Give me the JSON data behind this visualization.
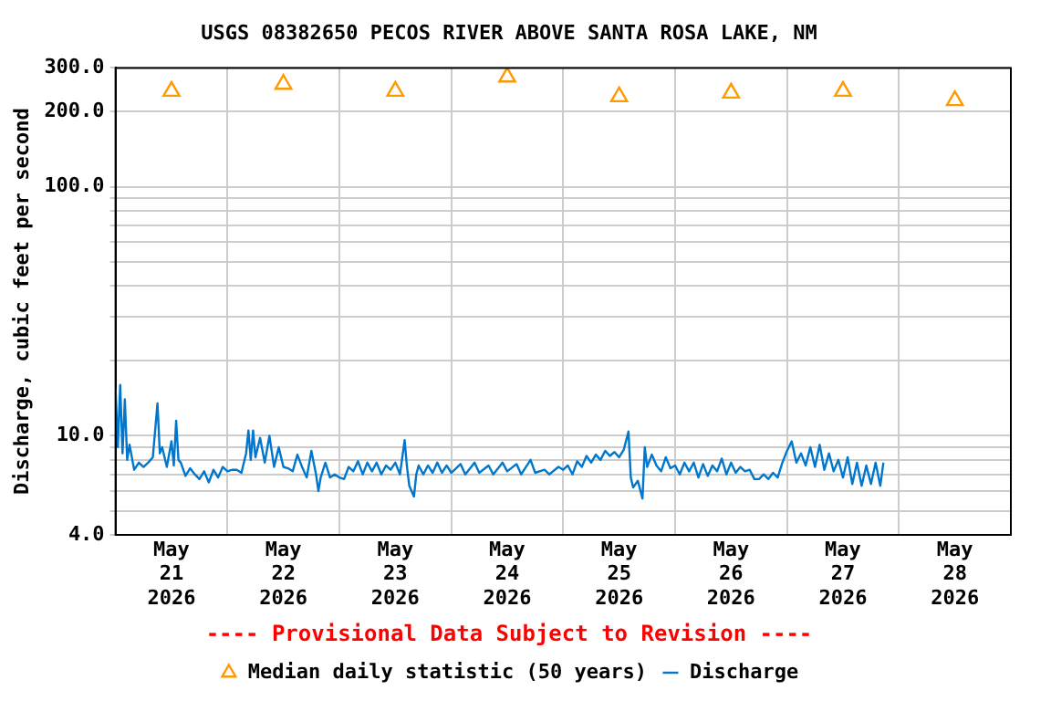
{
  "chart_data": {
    "type": "line",
    "title": "USGS 08382650 PECOS RIVER ABOVE SANTA ROSA LAKE, NM",
    "ylabel": "Discharge, cubic feet per second",
    "annotations": [
      "---- Provisional Data Subject to Revision ----"
    ],
    "log": "y",
    "grid": true,
    "legend": "bottom",
    "xlim": [
      "2026-05-21",
      "2026-05-29"
    ],
    "xticks": [
      {
        "value": "2026-05-21T12:00",
        "label": "May 21 2026"
      },
      {
        "value": "2026-05-22",
        "label": null
      },
      {
        "value": "2026-05-22T12:00",
        "label": "May 22 2026"
      },
      {
        "value": "2026-05-23",
        "label": null
      },
      {
        "value": "2026-05-23T12:00",
        "label": "May 23 2026"
      },
      {
        "value": "2026-05-24",
        "label": null
      },
      {
        "value": "2026-05-24T12:00",
        "label": "May 24 2026"
      },
      {
        "value": "2026-05-25",
        "label": null
      },
      {
        "value": "2026-05-25T12:00",
        "label": "May 25 2026"
      },
      {
        "value": "2026-05-26",
        "label": null
      },
      {
        "value": "2026-05-26T12:00",
        "label": "May 26 2026"
      },
      {
        "value": "2026-05-27",
        "label": null
      },
      {
        "value": "2026-05-27T12:00",
        "label": "May 27 2026"
      },
      {
        "value": "2026-05-28",
        "label": null
      },
      {
        "value": "2026-05-28T12:00",
        "label": "May 28 2026"
      }
    ],
    "ylim": [
      4,
      300
    ],
    "yticks": [
      {
        "value": 4,
        "label": "4.0"
      },
      {
        "value": 5,
        "label": null
      },
      {
        "value": 6,
        "label": null
      },
      {
        "value": 7,
        "label": null
      },
      {
        "value": 8,
        "label": null
      },
      {
        "value": 9,
        "label": null
      },
      {
        "value": 10,
        "label": "10.0"
      },
      {
        "value": 20,
        "label": null
      },
      {
        "value": 30,
        "label": null
      },
      {
        "value": 40,
        "label": null
      },
      {
        "value": 50,
        "label": null
      },
      {
        "value": 60,
        "label": null
      },
      {
        "value": 70,
        "label": null
      },
      {
        "value": 80,
        "label": null
      },
      {
        "value": 90,
        "label": null
      },
      {
        "value": 100,
        "label": "100.0"
      },
      {
        "value": 200,
        "label": "200.0"
      },
      {
        "value": 300,
        "label": "300.0"
      }
    ],
    "series": [
      {
        "name": "Median daily statistic (50 years)",
        "type": "scatter",
        "marker": "triangle",
        "color": "#ff9900",
        "x": [
          "2026-05-21T12:00",
          "2026-05-22T12:00",
          "2026-05-23T12:00",
          "2026-05-24T12:00",
          "2026-05-25T12:00",
          "2026-05-26T12:00",
          "2026-05-27T12:00",
          "2026-05-28T12:00"
        ],
        "values": [
          242,
          258,
          242,
          276,
          230,
          238,
          242,
          222
        ]
      },
      {
        "name": "Discharge",
        "type": "line",
        "marker": "none",
        "color": "#0077cc",
        "x": [
          "2026-05-21T00:00",
          "2026-05-21T00:30",
          "2026-05-21T01:00",
          "2026-05-21T01:30",
          "2026-05-21T02:00",
          "2026-05-21T02:30",
          "2026-05-21T03:00",
          "2026-05-21T04:00",
          "2026-05-21T05:00",
          "2026-05-21T06:00",
          "2026-05-21T07:00",
          "2026-05-21T08:00",
          "2026-05-21T09:00",
          "2026-05-21T09:30",
          "2026-05-21T10:00",
          "2026-05-21T11:00",
          "2026-05-21T12:00",
          "2026-05-21T12:30",
          "2026-05-21T13:00",
          "2026-05-21T13:30",
          "2026-05-21T14:00",
          "2026-05-21T15:00",
          "2026-05-21T16:00",
          "2026-05-21T17:00",
          "2026-05-21T18:00",
          "2026-05-21T19:00",
          "2026-05-21T20:00",
          "2026-05-21T21:00",
          "2026-05-21T22:00",
          "2026-05-21T23:00",
          "2026-05-22T00:00",
          "2026-05-22T01:00",
          "2026-05-22T02:00",
          "2026-05-22T03:00",
          "2026-05-22T04:00",
          "2026-05-22T04:30",
          "2026-05-22T05:00",
          "2026-05-22T05:30",
          "2026-05-22T06:00",
          "2026-05-22T07:00",
          "2026-05-22T08:00",
          "2026-05-22T09:00",
          "2026-05-22T10:00",
          "2026-05-22T11:00",
          "2026-05-22T12:00",
          "2026-05-22T13:00",
          "2026-05-22T14:00",
          "2026-05-22T15:00",
          "2026-05-22T16:00",
          "2026-05-22T17:00",
          "2026-05-22T18:00",
          "2026-05-22T19:00",
          "2026-05-22T19:30",
          "2026-05-22T20:00",
          "2026-05-22T21:00",
          "2026-05-22T22:00",
          "2026-05-22T23:00",
          "2026-05-23T00:00",
          "2026-05-23T01:00",
          "2026-05-23T02:00",
          "2026-05-23T03:00",
          "2026-05-23T04:00",
          "2026-05-23T05:00",
          "2026-05-23T06:00",
          "2026-05-23T07:00",
          "2026-05-23T08:00",
          "2026-05-23T09:00",
          "2026-05-23T10:00",
          "2026-05-23T11:00",
          "2026-05-23T12:00",
          "2026-05-23T13:00",
          "2026-05-23T14:00",
          "2026-05-23T14:30",
          "2026-05-23T15:00",
          "2026-05-23T16:00",
          "2026-05-23T16:30",
          "2026-05-23T17:00",
          "2026-05-23T18:00",
          "2026-05-23T19:00",
          "2026-05-23T20:00",
          "2026-05-23T21:00",
          "2026-05-23T22:00",
          "2026-05-23T23:00",
          "2026-05-24T00:00",
          "2026-05-24T02:00",
          "2026-05-24T03:00",
          "2026-05-24T05:00",
          "2026-05-24T06:00",
          "2026-05-24T08:00",
          "2026-05-24T09:00",
          "2026-05-24T11:00",
          "2026-05-24T12:00",
          "2026-05-24T14:00",
          "2026-05-24T15:00",
          "2026-05-24T17:00",
          "2026-05-24T18:00",
          "2026-05-24T20:00",
          "2026-05-24T21:00",
          "2026-05-24T23:00",
          "2026-05-25T00:00",
          "2026-05-25T01:00",
          "2026-05-25T02:00",
          "2026-05-25T03:00",
          "2026-05-25T04:00",
          "2026-05-25T05:00",
          "2026-05-25T06:00",
          "2026-05-25T07:00",
          "2026-05-25T08:00",
          "2026-05-25T09:00",
          "2026-05-25T10:00",
          "2026-05-25T11:00",
          "2026-05-25T12:00",
          "2026-05-25T13:00",
          "2026-05-25T14:00",
          "2026-05-25T14:30",
          "2026-05-25T15:00",
          "2026-05-25T16:00",
          "2026-05-25T17:00",
          "2026-05-25T17:30",
          "2026-05-25T18:00",
          "2026-05-25T19:00",
          "2026-05-25T20:00",
          "2026-05-25T21:00",
          "2026-05-25T22:00",
          "2026-05-25T23:00",
          "2026-05-26T00:00",
          "2026-05-26T01:00",
          "2026-05-26T02:00",
          "2026-05-26T03:00",
          "2026-05-26T04:00",
          "2026-05-26T05:00",
          "2026-05-26T06:00",
          "2026-05-26T07:00",
          "2026-05-26T08:00",
          "2026-05-26T09:00",
          "2026-05-26T10:00",
          "2026-05-26T11:00",
          "2026-05-26T12:00",
          "2026-05-26T13:00",
          "2026-05-26T14:00",
          "2026-05-26T15:00",
          "2026-05-26T16:00",
          "2026-05-26T17:00",
          "2026-05-26T18:00",
          "2026-05-26T19:00",
          "2026-05-26T20:00",
          "2026-05-26T21:00",
          "2026-05-26T22:00",
          "2026-05-26T23:00",
          "2026-05-27T00:00",
          "2026-05-27T01:00",
          "2026-05-27T02:00",
          "2026-05-27T03:00",
          "2026-05-27T04:00",
          "2026-05-27T05:00",
          "2026-05-27T06:00",
          "2026-05-27T07:00",
          "2026-05-27T08:00",
          "2026-05-27T09:00",
          "2026-05-27T10:00",
          "2026-05-27T11:00",
          "2026-05-27T12:00",
          "2026-05-27T13:00",
          "2026-05-27T14:00",
          "2026-05-27T15:00",
          "2026-05-27T16:00",
          "2026-05-27T17:00",
          "2026-05-27T18:00",
          "2026-05-27T19:00",
          "2026-05-27T20:00",
          "2026-05-27T20:40"
        ],
        "values": [
          15.5,
          9,
          16,
          8.5,
          14,
          8,
          9.2,
          7.3,
          7.8,
          7.5,
          7.8,
          8.2,
          13.5,
          8.5,
          9,
          7.5,
          9.5,
          7.6,
          11.5,
          8,
          7.8,
          6.9,
          7.4,
          7,
          6.7,
          7.2,
          6.5,
          7.3,
          6.8,
          7.5,
          7.2,
          7.3,
          7.3,
          7.1,
          8.5,
          10.5,
          8,
          10.5,
          8.2,
          9.8,
          7.8,
          10,
          7.5,
          9,
          7.5,
          7.4,
          7.2,
          8.4,
          7.5,
          6.8,
          8.7,
          7,
          6,
          6.8,
          7.8,
          6.8,
          7,
          6.8,
          6.7,
          7.5,
          7.2,
          7.9,
          7,
          7.8,
          7.2,
          7.8,
          7,
          7.6,
          7.3,
          7.8,
          7,
          9.6,
          7.5,
          6.3,
          5.7,
          7,
          7.6,
          7,
          7.6,
          7.1,
          7.8,
          7.1,
          7.6,
          7.1,
          7.7,
          7,
          7.8,
          7.1,
          7.6,
          7,
          7.8,
          7.2,
          7.7,
          7,
          8,
          7.1,
          7.3,
          7,
          7.5,
          7.3,
          7.6,
          7,
          7.9,
          7.5,
          8.3,
          7.8,
          8.4,
          8,
          8.7,
          8.3,
          8.6,
          8.2,
          8.8,
          10.4,
          6.8,
          6.2,
          6.6,
          5.6,
          9,
          7.5,
          8.4,
          7.6,
          7.2,
          8.2,
          7.4,
          7.6,
          7,
          7.8,
          7.2,
          7.8,
          6.8,
          7.7,
          6.9,
          7.6,
          7.2,
          8.1,
          7,
          7.8,
          7.1,
          7.5,
          7.2,
          7.3,
          6.7,
          6.7,
          7,
          6.7,
          7.1,
          6.8,
          7.8,
          8.7,
          9.5,
          7.8,
          8.5,
          7.6,
          9,
          7.5,
          9.2,
          7.3,
          8.5,
          7.2,
          8,
          6.8,
          8.2,
          6.4,
          7.8,
          6.3,
          7.6,
          6.4,
          7.8,
          6.3,
          7.8
        ]
      }
    ]
  }
}
